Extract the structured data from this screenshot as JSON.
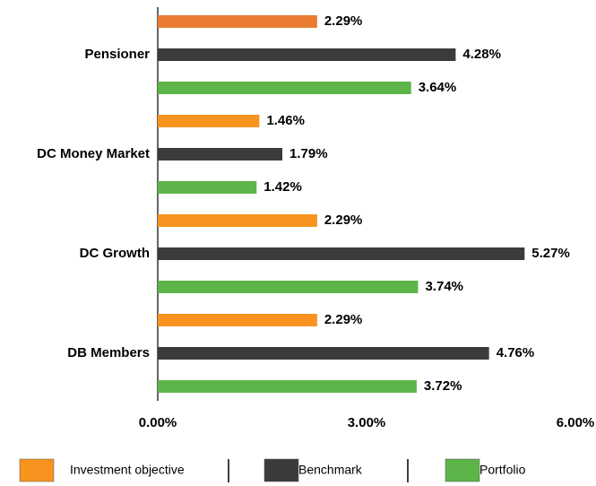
{
  "chart_data": {
    "type": "bar",
    "orientation": "horizontal",
    "categories": [
      "Pensioner",
      "DC Money Market",
      "DC Growth",
      "DB Members"
    ],
    "series": [
      {
        "name": "Investment objective",
        "color": "#f7931e",
        "colors": [
          "#e97c30",
          "#f7931e",
          "#f7931e",
          "#f7931e"
        ],
        "values": [
          2.29,
          1.46,
          2.29,
          2.29
        ],
        "value_labels": [
          "2.29%",
          "1.46%",
          "2.29%",
          "2.29%"
        ]
      },
      {
        "name": "Benchmark",
        "color": "#3b3b3b",
        "values": [
          4.28,
          1.79,
          5.27,
          4.76
        ],
        "value_labels": [
          "4.28%",
          "1.79%",
          "5.27%",
          "4.76%"
        ]
      },
      {
        "name": "Portfolio",
        "color": "#5db54a",
        "values": [
          3.64,
          1.42,
          3.74,
          3.72
        ],
        "value_labels": [
          "3.64%",
          "1.42%",
          "3.74%",
          "3.72%"
        ]
      }
    ],
    "xlim": [
      0,
      6
    ],
    "xticks": [
      {
        "value": 0,
        "label": "0.00%"
      },
      {
        "value": 3,
        "label": "3.00%"
      },
      {
        "value": 6,
        "label": "6.00%"
      }
    ],
    "legend": "bottom"
  }
}
